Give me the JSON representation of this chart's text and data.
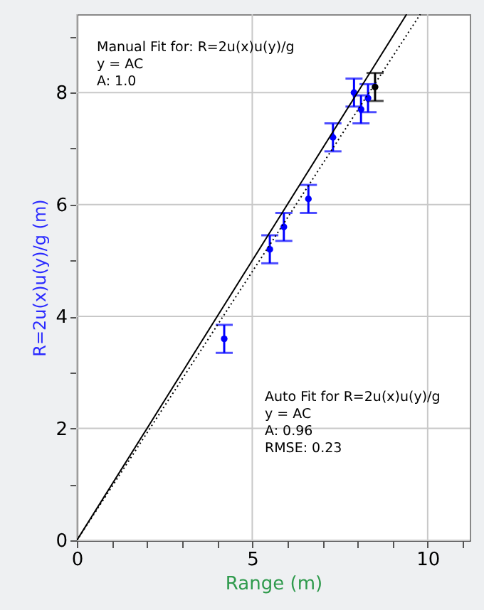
{
  "chart_data": {
    "type": "scatter",
    "xlabel": "Range (m)",
    "ylabel": "R=2u(x)u(y)/g (m)",
    "xlim": [
      0,
      11.2
    ],
    "ylim": [
      0,
      9.4
    ],
    "xticks": [
      0,
      {
        "value": 1,
        "label": null
      },
      {
        "value": 2,
        "label": null
      },
      {
        "value": 3,
        "label": null
      },
      {
        "value": 4,
        "label": null
      },
      5,
      {
        "value": 6,
        "label": null
      },
      {
        "value": 7,
        "label": null
      },
      {
        "value": 8,
        "label": null
      },
      {
        "value": 9,
        "label": null
      },
      10,
      {
        "value": 11,
        "label": null
      }
    ],
    "yticks": [
      0,
      {
        "value": 1,
        "label": null
      },
      2,
      {
        "value": 3,
        "label": null
      },
      4,
      {
        "value": 5,
        "label": null
      },
      6,
      {
        "value": 7,
        "label": null
      },
      8,
      {
        "value": 9,
        "label": null
      }
    ],
    "grid": true,
    "marker": "circle",
    "series": [
      {
        "color": "#0000ff",
        "colors": [
          "#0000ff",
          "#0000ff",
          "#0000ff",
          "#0000ff",
          "#0000ff",
          "#0000ff",
          "#0000ff",
          "#0000ff",
          "#000000"
        ],
        "x": [
          4.2,
          5.5,
          5.9,
          6.6,
          7.3,
          7.9,
          8.1,
          8.3,
          8.5
        ],
        "values": [
          3.6,
          5.2,
          5.6,
          6.1,
          7.2,
          8.0,
          7.7,
          7.9,
          8.1
        ],
        "errors": [
          0.25,
          0.25,
          0.25,
          0.25,
          0.25,
          0.25,
          0.25,
          0.25,
          0.25
        ]
      },
      {
        "type": "line",
        "color": "#000000",
        "line_style": "solid",
        "marker": "none",
        "x": [
          0,
          9.4
        ],
        "values": [
          0,
          9.4
        ]
      },
      {
        "type": "line",
        "color": "#000000",
        "line_style": "dotted",
        "marker": "none",
        "x": [
          0,
          9.79
        ],
        "values": [
          0,
          9.4
        ]
      }
    ],
    "annotations": [
      "Manual Fit for: R=2u(x)u(y)/g\ny = AC\nA: 1.0",
      "Auto Fit for R=2u(x)u(y)/g\ny = AC\nA: 0.96\nRMSE: 0.23"
    ]
  }
}
